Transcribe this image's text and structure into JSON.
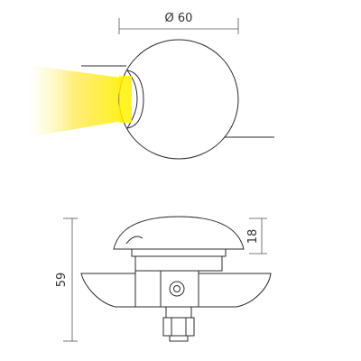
{
  "dimensions": {
    "diameter_label": "Ø 60",
    "height_label": "59",
    "top_height_label": "18"
  },
  "colors": {
    "line": "#2b2b2b",
    "light_beam": "#fff200",
    "background": "#ffffff"
  }
}
